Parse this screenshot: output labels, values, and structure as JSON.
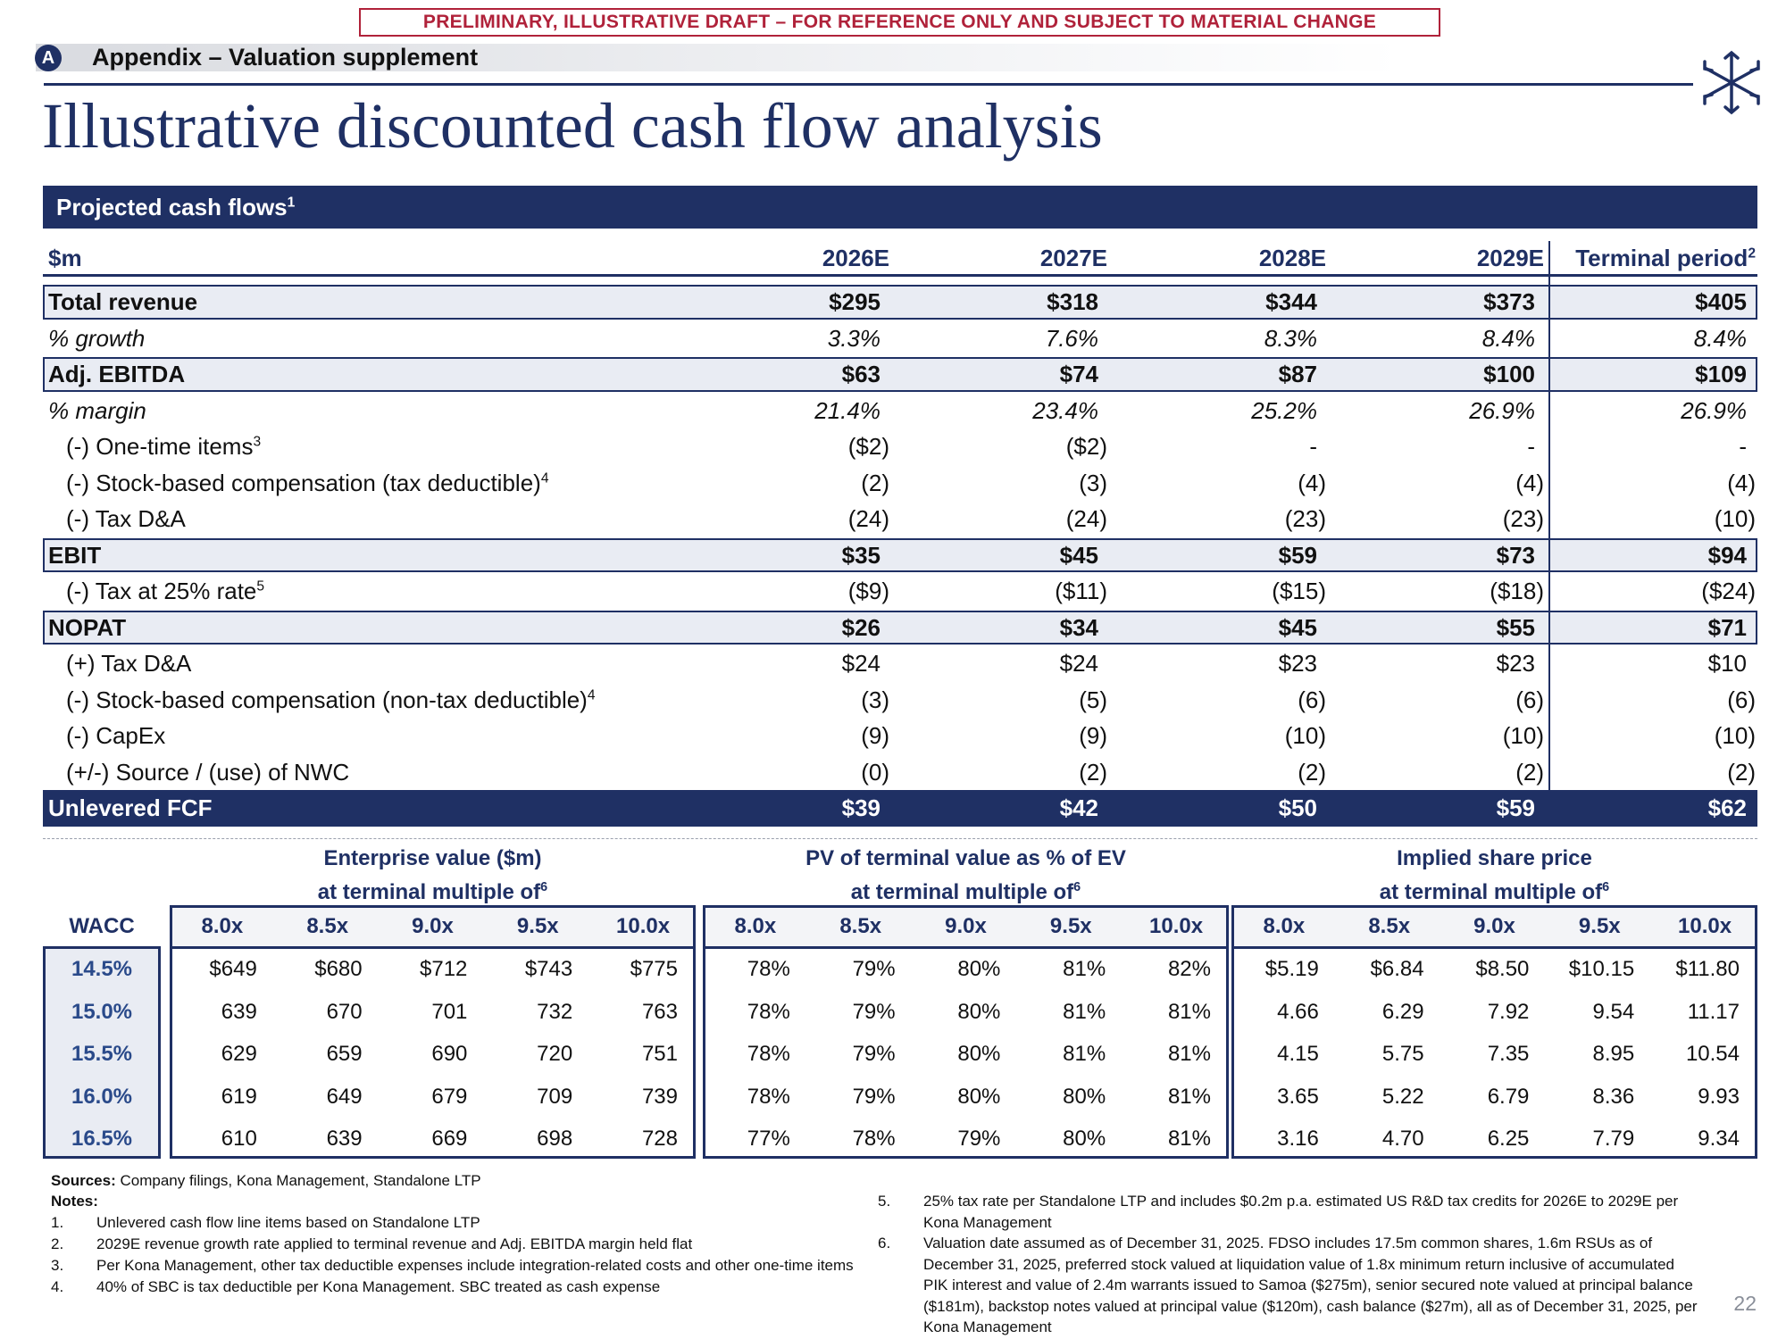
{
  "banner": "PRELIMINARY, ILLUSTRATIVE DRAFT – FOR REFERENCE ONLY AND SUBJECT TO MATERIAL CHANGE",
  "header": {
    "badge": "A",
    "section": "Appendix – Valuation supplement",
    "title": "Illustrative discounted cash flow analysis"
  },
  "cash_flows": {
    "title": "Projected cash flows",
    "title_note": "1",
    "unit": "$m",
    "columns": [
      "2026E",
      "2027E",
      "2028E",
      "2029E",
      "Terminal period"
    ],
    "terminal_note": "2",
    "rows": [
      {
        "label": "Total revenue",
        "style": "total",
        "values": [
          "$295",
          "$318",
          "$344",
          "$373",
          "$405"
        ]
      },
      {
        "label": "% growth",
        "style": "italic",
        "values": [
          "3.3%",
          "7.6%",
          "8.3%",
          "8.4%",
          "8.4%"
        ]
      },
      {
        "label": "Adj. EBITDA",
        "style": "total",
        "values": [
          "$63",
          "$74",
          "$87",
          "$100",
          "$109"
        ]
      },
      {
        "label": "% margin",
        "style": "italic",
        "values": [
          "21.4%",
          "23.4%",
          "25.2%",
          "26.9%",
          "26.9%"
        ]
      },
      {
        "label": "(-) One-time items",
        "note": "3",
        "style": "item",
        "values": [
          "($2)",
          "($2)",
          "-",
          "-",
          "-"
        ]
      },
      {
        "label": "(-) Stock-based compensation (tax deductible)",
        "note": "4",
        "style": "item",
        "values": [
          "(2)",
          "(3)",
          "(4)",
          "(4)",
          "(4)"
        ]
      },
      {
        "label": "(-) Tax D&A",
        "style": "item",
        "values": [
          "(24)",
          "(24)",
          "(23)",
          "(23)",
          "(10)"
        ]
      },
      {
        "label": "EBIT",
        "style": "total",
        "values": [
          "$35",
          "$45",
          "$59",
          "$73",
          "$94"
        ]
      },
      {
        "label": "(-) Tax at 25% rate",
        "note": "5",
        "style": "item",
        "values": [
          "($9)",
          "($11)",
          "($15)",
          "($18)",
          "($24)"
        ]
      },
      {
        "label": "NOPAT",
        "style": "total",
        "values": [
          "$26",
          "$34",
          "$45",
          "$55",
          "$71"
        ]
      },
      {
        "label": "(+) Tax D&A",
        "style": "item",
        "values": [
          "$24",
          "$24",
          "$23",
          "$23",
          "$10"
        ]
      },
      {
        "label": "(-) Stock-based compensation (non-tax deductible)",
        "note": "4",
        "style": "item",
        "values": [
          "(3)",
          "(5)",
          "(6)",
          "(6)",
          "(6)"
        ]
      },
      {
        "label": "(-) CapEx",
        "style": "item",
        "values": [
          "(9)",
          "(9)",
          "(10)",
          "(10)",
          "(10)"
        ]
      },
      {
        "label": "(+/-) Source / (use) of NWC",
        "style": "item",
        "values": [
          "(0)",
          "(2)",
          "(2)",
          "(2)",
          "(2)"
        ]
      },
      {
        "label": "Unlevered FCF",
        "style": "final",
        "values": [
          "$39",
          "$42",
          "$50",
          "$59",
          "$62"
        ]
      }
    ]
  },
  "sensitivity": {
    "wacc_label": "WACC",
    "wacc": [
      "14.5%",
      "15.0%",
      "15.5%",
      "16.0%",
      "16.5%"
    ],
    "tables": [
      {
        "title": "Enterprise value ($m)",
        "subtitle": "at terminal multiple of",
        "note": "6",
        "multiples": [
          "8.0x",
          "8.5x",
          "9.0x",
          "9.5x",
          "10.0x"
        ],
        "rows": [
          [
            "$649",
            "$680",
            "$712",
            "$743",
            "$775"
          ],
          [
            "639",
            "670",
            "701",
            "732",
            "763"
          ],
          [
            "629",
            "659",
            "690",
            "720",
            "751"
          ],
          [
            "619",
            "649",
            "679",
            "709",
            "739"
          ],
          [
            "610",
            "639",
            "669",
            "698",
            "728"
          ]
        ]
      },
      {
        "title": "PV of terminal value as % of EV",
        "subtitle": "at terminal multiple of",
        "note": "6",
        "multiples": [
          "8.0x",
          "8.5x",
          "9.0x",
          "9.5x",
          "10.0x"
        ],
        "rows": [
          [
            "78%",
            "79%",
            "80%",
            "81%",
            "82%"
          ],
          [
            "78%",
            "79%",
            "80%",
            "81%",
            "81%"
          ],
          [
            "78%",
            "79%",
            "80%",
            "81%",
            "81%"
          ],
          [
            "78%",
            "79%",
            "80%",
            "80%",
            "81%"
          ],
          [
            "77%",
            "78%",
            "79%",
            "80%",
            "81%"
          ]
        ]
      },
      {
        "title": "Implied share price",
        "subtitle": "at terminal multiple of",
        "note": "6",
        "multiples": [
          "8.0x",
          "8.5x",
          "9.0x",
          "9.5x",
          "10.0x"
        ],
        "rows": [
          [
            "$5.19",
            "$6.84",
            "$8.50",
            "$10.15",
            "$11.80"
          ],
          [
            "4.66",
            "6.29",
            "7.92",
            "9.54",
            "11.17"
          ],
          [
            "4.15",
            "5.75",
            "7.35",
            "8.95",
            "10.54"
          ],
          [
            "3.65",
            "5.22",
            "6.79",
            "8.36",
            "9.93"
          ],
          [
            "3.16",
            "4.70",
            "6.25",
            "7.79",
            "9.34"
          ]
        ]
      }
    ]
  },
  "footer": {
    "sources_label": "Sources:",
    "sources": "Company filings, Kona Management, Standalone LTP",
    "notes_label": "Notes:",
    "notes": [
      {
        "number": "1.",
        "text": "Unlevered cash flow line items based on Standalone LTP"
      },
      {
        "number": "2.",
        "text": "2029E revenue growth rate applied to terminal revenue and Adj. EBITDA margin held flat"
      },
      {
        "number": "3.",
        "text": "Per Kona Management, other tax deductible expenses include integration-related costs and other one-time items"
      },
      {
        "number": "4.",
        "text": "40% of SBC is tax deductible per Kona Management. SBC treated as cash expense"
      },
      {
        "number": "5.",
        "text": "25% tax rate per Standalone LTP and includes $0.2m p.a. estimated US R&D tax credits for 2026E to 2029E per Kona Management"
      },
      {
        "number": "6.",
        "text": "Valuation date assumed as of December 31, 2025. FDSO includes 17.5m common shares, 1.6m RSUs as of December 31, 2025, preferred stock valued at liquidation value of 1.8x minimum return inclusive of accumulated PIK interest and value of 2.4m warrants issued to Samoa ($275m), senior secured note valued at principal balance ($181m), backstop notes valued at principal value ($120m), cash balance ($27m), all as of December 31, 2025, per Kona Management"
      }
    ],
    "page_number": "22"
  }
}
